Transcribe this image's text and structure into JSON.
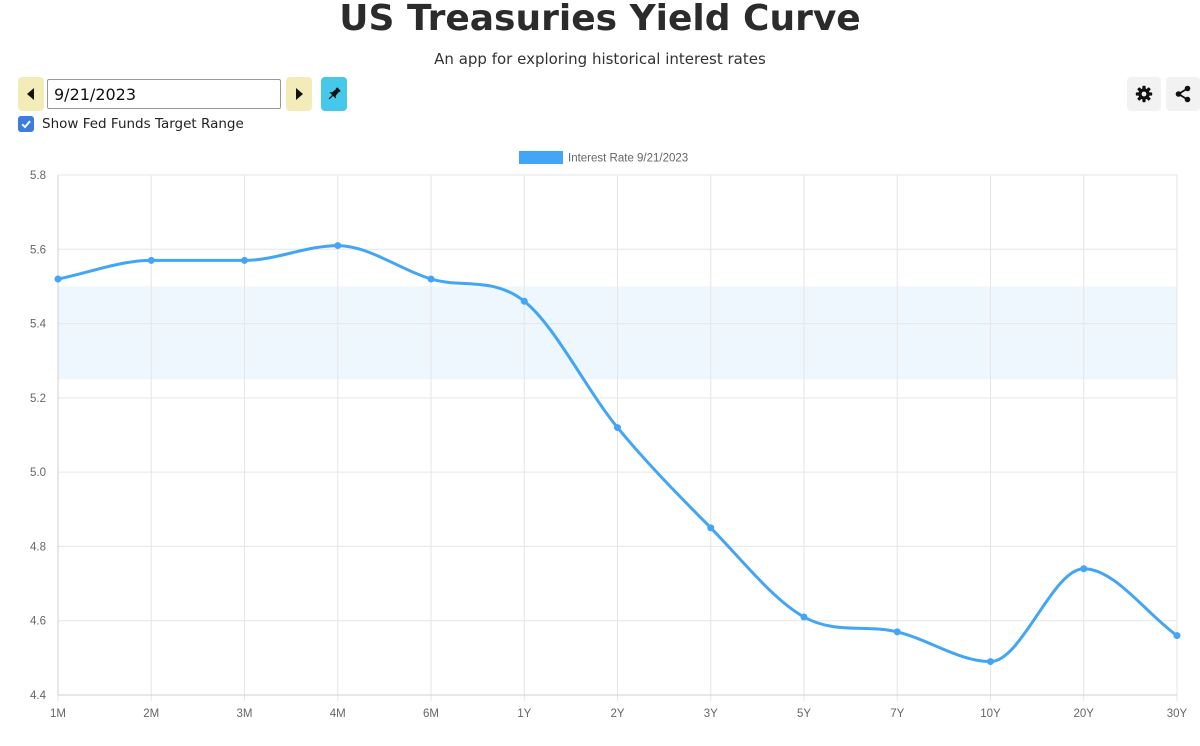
{
  "header": {
    "title": "US Treasuries Yield Curve",
    "subtitle": "An app for exploring historical interest rates"
  },
  "controls": {
    "date_value": "9/21/2023",
    "prev_icon": "caret-left-icon",
    "next_icon": "caret-right-icon",
    "pin_icon": "pin-icon",
    "show_fed_funds_label": "Show Fed Funds Target Range",
    "show_fed_funds_checked": true,
    "settings_icon": "gear-icon",
    "share_icon": "share-icon"
  },
  "colors": {
    "line": "#42a5f5",
    "band": "#eef6fe",
    "nav_button": "#f4ecb8",
    "pin_button": "#45c8ea",
    "checkbox": "#3b7ddd"
  },
  "chart_data": {
    "type": "line",
    "categories": [
      "1M",
      "2M",
      "3M",
      "4M",
      "6M",
      "1Y",
      "2Y",
      "3Y",
      "5Y",
      "7Y",
      "10Y",
      "20Y",
      "30Y"
    ],
    "series": [
      {
        "name": "Interest Rate 9/21/2023",
        "values": [
          5.52,
          5.57,
          5.57,
          5.61,
          5.52,
          5.46,
          5.12,
          4.85,
          4.61,
          4.57,
          4.49,
          4.74,
          4.56
        ]
      }
    ],
    "fed_funds_target_range": [
      5.25,
      5.5
    ],
    "ylim": [
      4.4,
      5.8
    ],
    "yticks": [
      "4.4",
      "4.6",
      "4.8",
      "5.0",
      "5.2",
      "5.4",
      "5.6",
      "5.8"
    ],
    "grid": true,
    "legend_position": "top-center",
    "title": "",
    "xlabel": "",
    "ylabel": ""
  }
}
